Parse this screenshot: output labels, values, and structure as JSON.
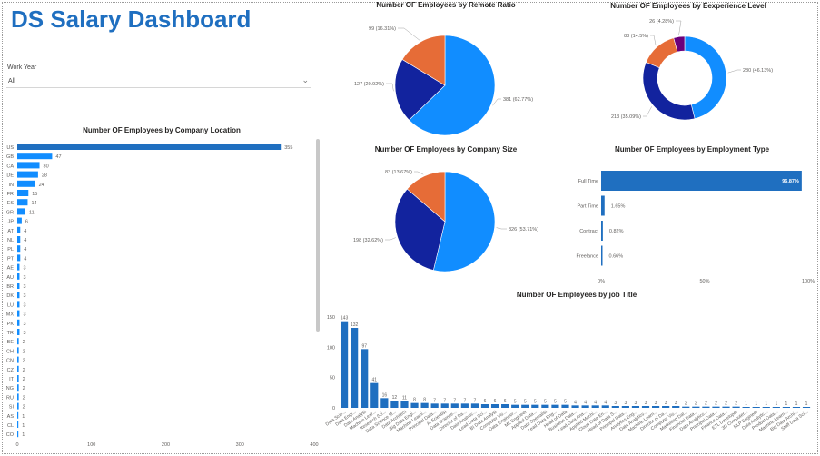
{
  "dashboard": {
    "title": "DS Salary Dashboard",
    "slicer_label": "Work Year",
    "slicer_value": "All",
    "accent_color": "#1f6fc0"
  },
  "chart_data": [
    {
      "id": "location",
      "type": "bar",
      "orientation": "horizontal",
      "title": "Number OF Employees by Company Location",
      "categories": [
        "US",
        "GB",
        "CA",
        "DE",
        "IN",
        "FR",
        "ES",
        "GR",
        "JP",
        "AT",
        "NL",
        "PL",
        "PT",
        "AE",
        "AU",
        "BR",
        "DK",
        "LU",
        "MX",
        "PK",
        "TR",
        "BE",
        "CH",
        "CN",
        "CZ",
        "IT",
        "NG",
        "RU",
        "SI",
        "AS",
        "CL",
        "CO"
      ],
      "values": [
        355,
        47,
        30,
        28,
        24,
        15,
        14,
        11,
        6,
        4,
        4,
        4,
        4,
        3,
        3,
        3,
        3,
        3,
        3,
        3,
        3,
        2,
        2,
        2,
        2,
        2,
        2,
        2,
        2,
        1,
        1,
        1
      ],
      "x_ticks": [
        0,
        100,
        200,
        300,
        400
      ],
      "xlim": [
        0,
        400
      ],
      "color": "#1f6fc0",
      "highlight_color": "#118dff"
    },
    {
      "id": "remote",
      "type": "pie",
      "title": "Number OF Employees by Remote Ratio",
      "slices": [
        {
          "value": 381,
          "label": "381 (62.77%)",
          "color": "#118dff"
        },
        {
          "value": 127,
          "label": "127 (20.92%)",
          "color": "#12239e"
        },
        {
          "value": 99,
          "label": "99 (16.31%)",
          "color": "#e66c37"
        }
      ]
    },
    {
      "id": "experience",
      "type": "pie",
      "donut": true,
      "title": "Number OF Employees by Eexperience Level",
      "slices": [
        {
          "value": 280,
          "label": "280 (46.13%)",
          "color": "#118dff"
        },
        {
          "value": 213,
          "label": "213 (35.09%)",
          "color": "#12239e"
        },
        {
          "value": 88,
          "label": "88 (14.5%)",
          "color": "#e66c37"
        },
        {
          "value": 26,
          "label": "26 (4.28%)",
          "color": "#6b007b"
        }
      ]
    },
    {
      "id": "size",
      "type": "pie",
      "title": "Number OF Employees by Company Size",
      "slices": [
        {
          "value": 326,
          "label": "326 (53.71%)",
          "color": "#118dff"
        },
        {
          "value": 198,
          "label": "198 (32.62%)",
          "color": "#12239e"
        },
        {
          "value": 83,
          "label": "83 (13.67%)",
          "color": "#e66c37"
        }
      ]
    },
    {
      "id": "employment",
      "type": "bar",
      "orientation": "horizontal",
      "title": "Number OF Employees by Employment Type",
      "categories": [
        "Full Time",
        "Part Time",
        "Contract",
        "Freelance"
      ],
      "values": [
        96.87,
        1.65,
        0.82,
        0.66
      ],
      "value_labels": [
        "96.87%",
        "1.65%",
        "0.82%",
        "0.66%"
      ],
      "x_ticks": [
        "0%",
        "50%",
        "100%"
      ],
      "xlim": [
        0,
        100
      ],
      "color": "#1f6fc0"
    },
    {
      "id": "jobtitle",
      "type": "bar",
      "orientation": "vertical",
      "title": "Number OF Employees by job Title",
      "categories": [
        "Data Scie...",
        "Data Engi...",
        "Data Analyst",
        "Machine Lear...",
        "Research Sci...",
        "Data Science M...",
        "Data Architect",
        "Big Data Engi...",
        "Machine Learni...",
        "Principal Data...",
        "AI Scientist",
        "Data Science...",
        "Director of Da...",
        "Data Analytic...",
        "Lead Data Sci...",
        "BI Data Analyst",
        "Computer Vis...",
        "Data Engineer...",
        "ML Engineer",
        "Applied Data...",
        "Data Specialist",
        "Lead Data Eng...",
        "Head of Data",
        "Business Data...",
        "Lead Data Ana...",
        "Applied Machi...",
        "Cloud Data En...",
        "Head of Data S...",
        "Principal Data...",
        "Analytics Eng...",
        "Data Analytics...",
        "Machine Learn...",
        "Director of Da...",
        "Computer Vis...",
        "Marketing Dat...",
        "Financial Data...",
        "Data Analytics...",
        "Principal Data...",
        "Finance Data...",
        "ETL Developer",
        "3D Computer...",
        "NLP Engineer",
        "Data Analytic...",
        "Product Data...",
        "Machine Learn...",
        "Big Data Archi...",
        "Staff Data Sci..."
      ],
      "values": [
        143,
        132,
        97,
        41,
        16,
        12,
        11,
        8,
        8,
        7,
        7,
        7,
        7,
        7,
        6,
        6,
        6,
        5,
        5,
        5,
        5,
        5,
        5,
        4,
        4,
        4,
        4,
        3,
        3,
        3,
        3,
        3,
        3,
        3,
        2,
        2,
        2,
        2,
        2,
        2,
        1,
        1,
        1,
        1,
        1,
        1,
        1
      ],
      "y_ticks": [
        0,
        50,
        100,
        150
      ],
      "ylim": [
        0,
        150
      ],
      "color": "#1f6fc0"
    }
  ]
}
